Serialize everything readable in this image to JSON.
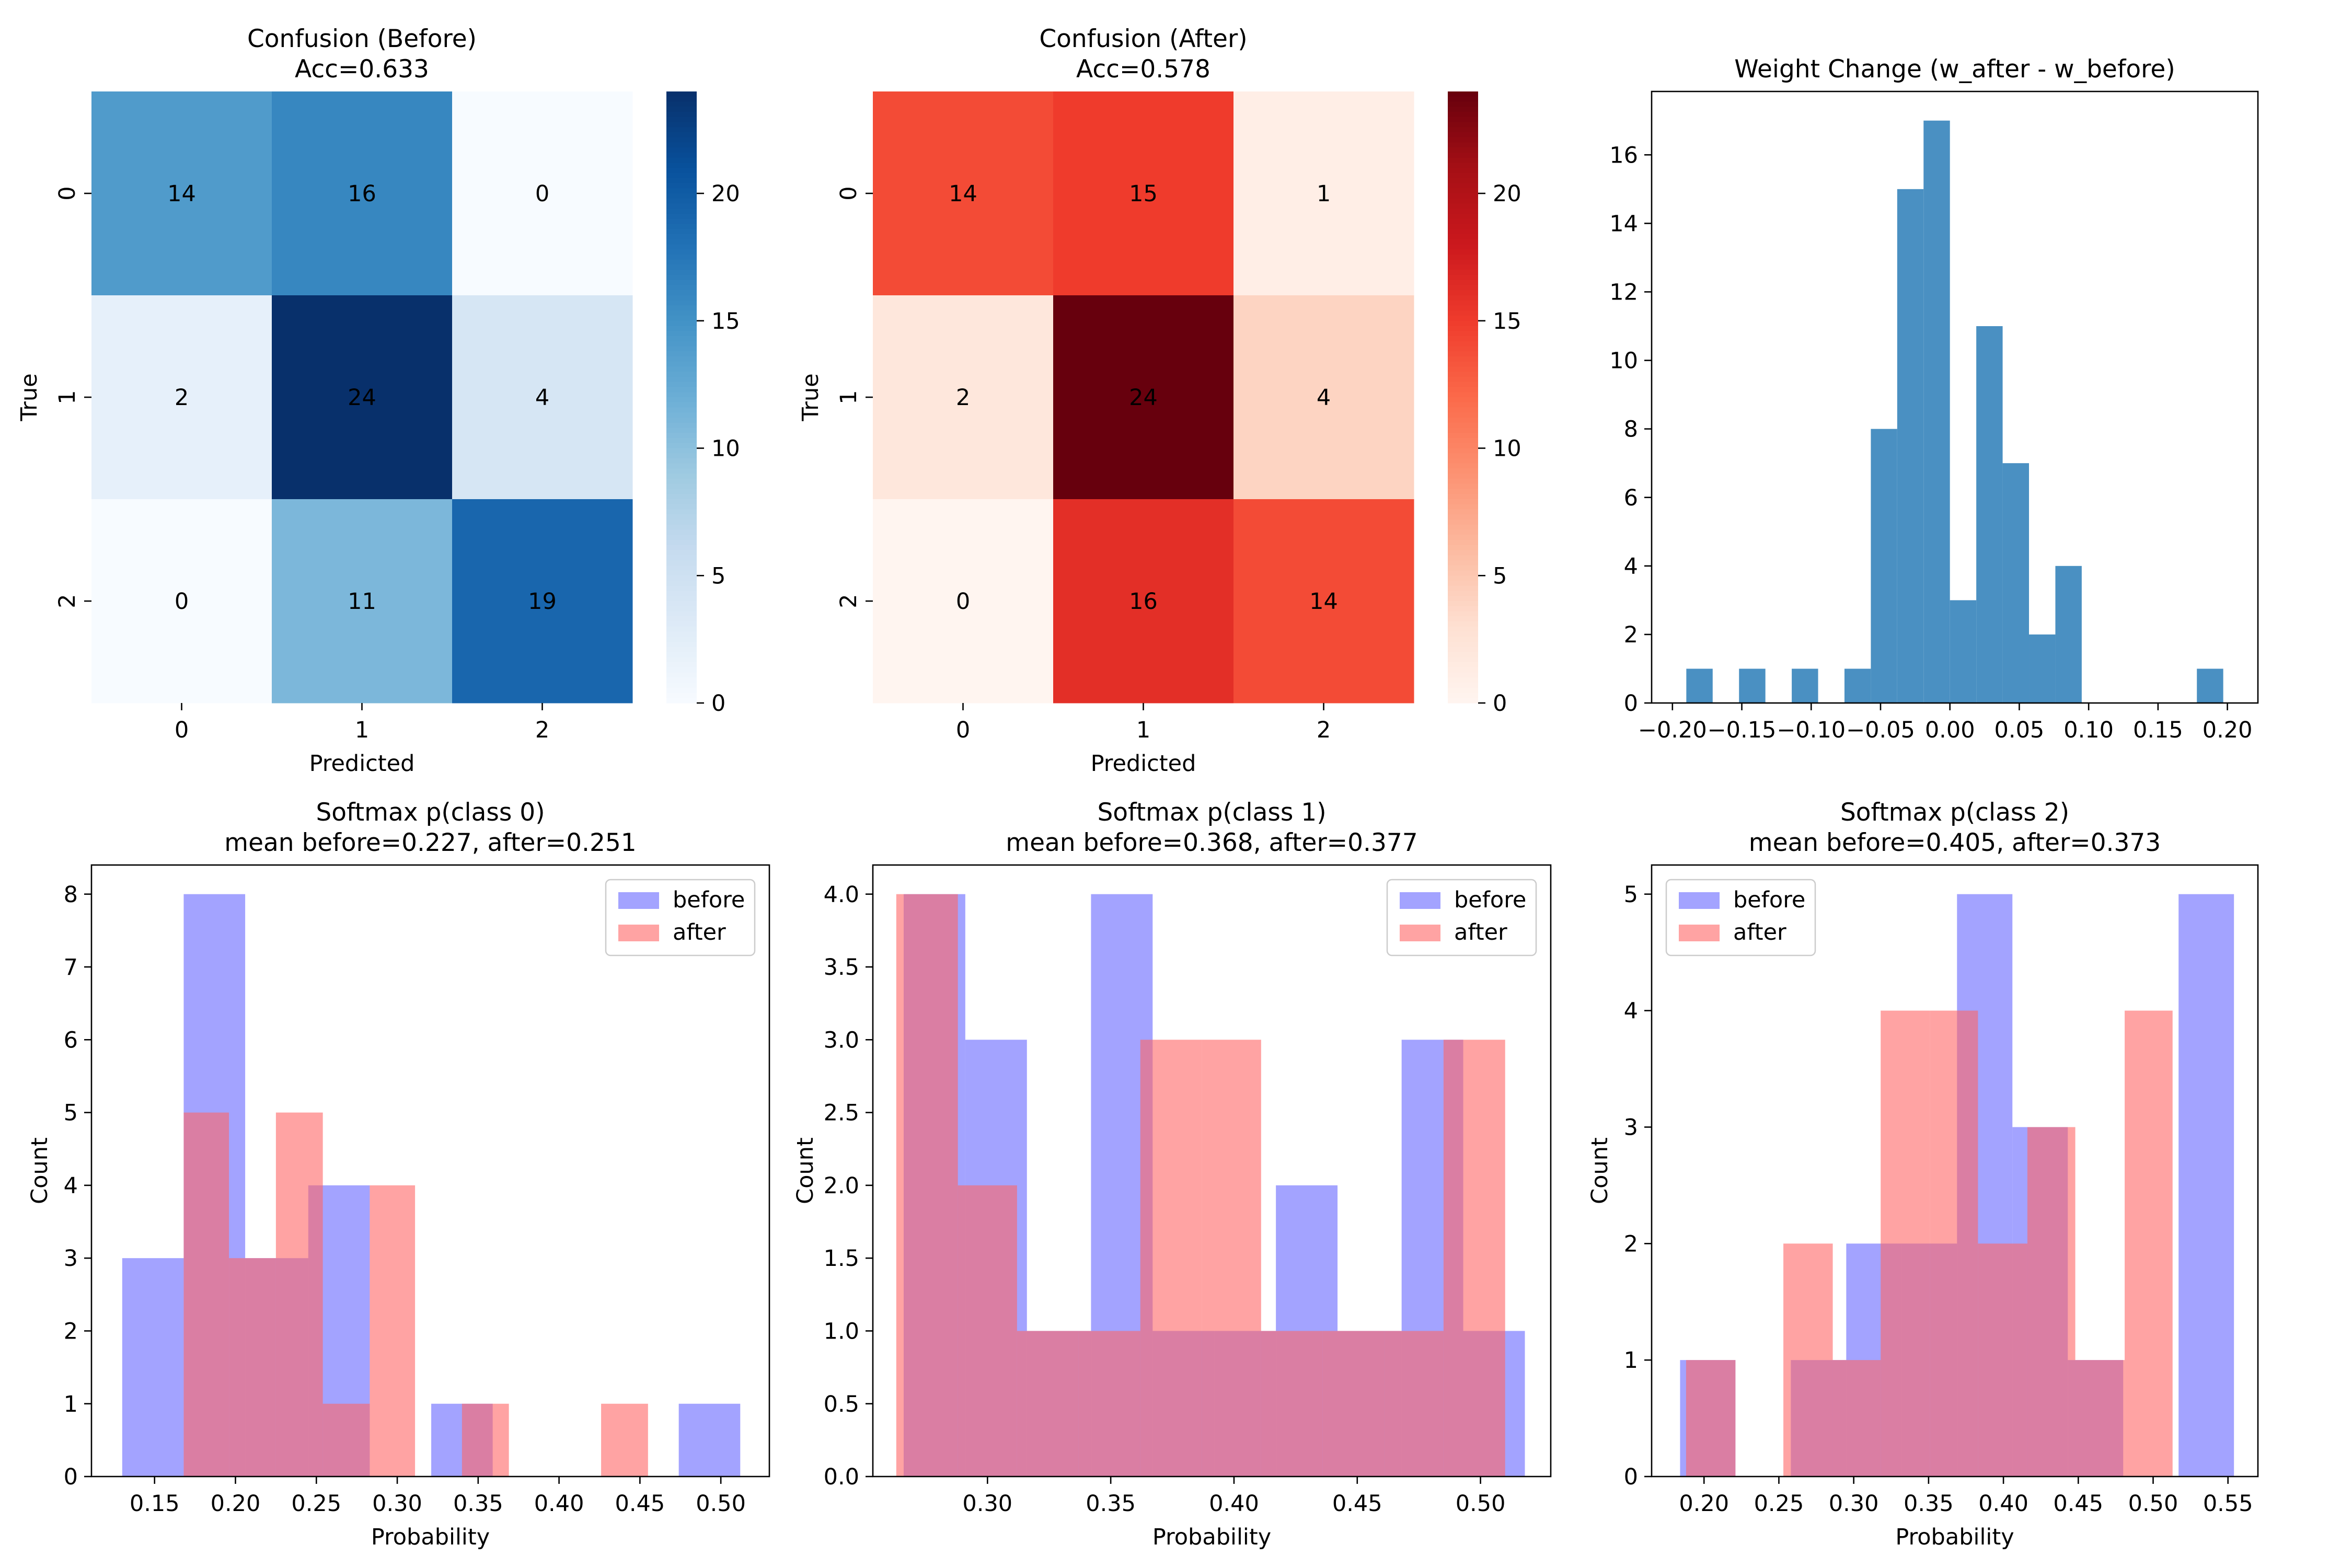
{
  "chart_data": [
    {
      "type": "heatmap",
      "title": "Confusion (Before)",
      "subtitle": "Acc=0.633",
      "xlabel": "Predicted",
      "ylabel": "True",
      "xticks": [
        "0",
        "1",
        "2"
      ],
      "yticks": [
        "0",
        "1",
        "2"
      ],
      "matrix": [
        [
          14,
          16,
          0
        ],
        [
          2,
          24,
          4
        ],
        [
          0,
          11,
          19
        ]
      ],
      "vmin": 0,
      "vmax": 24,
      "colormap": "Blues",
      "colorbar_ticks": [
        0,
        5,
        10,
        15,
        20
      ]
    },
    {
      "type": "heatmap",
      "title": "Confusion (After)",
      "subtitle": "Acc=0.578",
      "xlabel": "Predicted",
      "ylabel": "True",
      "xticks": [
        "0",
        "1",
        "2"
      ],
      "yticks": [
        "0",
        "1",
        "2"
      ],
      "matrix": [
        [
          14,
          15,
          1
        ],
        [
          2,
          24,
          4
        ],
        [
          0,
          16,
          14
        ]
      ],
      "vmin": 0,
      "vmax": 24,
      "colormap": "Reds",
      "colorbar_ticks": [
        0,
        5,
        10,
        15,
        20
      ]
    },
    {
      "type": "bar",
      "title": "Weight Change (w_after - w_before)",
      "xlabel": "",
      "ylabel": "",
      "color": "#4a90c2",
      "xlim": [
        -0.215,
        0.222
      ],
      "ylim": [
        0,
        17.85
      ],
      "xticks": [
        -0.2,
        -0.15,
        -0.1,
        -0.05,
        0.0,
        0.05,
        0.1,
        0.15,
        0.2
      ],
      "yticks": [
        0,
        2,
        4,
        6,
        8,
        10,
        12,
        14,
        16
      ],
      "bins": [
        {
          "x0": -0.19,
          "x1": -0.171,
          "count": 1
        },
        {
          "x0": -0.152,
          "x1": -0.133,
          "count": 1
        },
        {
          "x0": -0.114,
          "x1": -0.095,
          "count": 1
        },
        {
          "x0": -0.076,
          "x1": -0.057,
          "count": 1
        },
        {
          "x0": -0.057,
          "x1": -0.038,
          "count": 8
        },
        {
          "x0": -0.038,
          "x1": -0.019,
          "count": 15
        },
        {
          "x0": -0.019,
          "x1": 0.0,
          "count": 17
        },
        {
          "x0": 0.0,
          "x1": 0.019,
          "count": 3
        },
        {
          "x0": 0.019,
          "x1": 0.038,
          "count": 11
        },
        {
          "x0": 0.038,
          "x1": 0.057,
          "count": 7
        },
        {
          "x0": 0.057,
          "x1": 0.076,
          "count": 2
        },
        {
          "x0": 0.076,
          "x1": 0.095,
          "count": 4
        },
        {
          "x0": 0.178,
          "x1": 0.197,
          "count": 1
        }
      ]
    },
    {
      "type": "bar",
      "title": "Softmax p(class 0)",
      "subtitle": "mean before=0.227, after=0.251",
      "xlabel": "Probability",
      "ylabel": "Count",
      "xlim": [
        0.111,
        0.53
      ],
      "ylim": [
        0,
        8.4
      ],
      "xticks": [
        0.15,
        0.2,
        0.25,
        0.3,
        0.35,
        0.4,
        0.45,
        0.5
      ],
      "yticks": [
        0,
        1,
        2,
        3,
        4,
        5,
        6,
        7,
        8
      ],
      "legend": {
        "position": "top-right",
        "entries": [
          "before",
          "after"
        ]
      },
      "series": [
        {
          "name": "before",
          "color": "#6666ff",
          "bins": [
            {
              "x0": 0.13,
              "x1": 0.168,
              "count": 3
            },
            {
              "x0": 0.168,
              "x1": 0.206,
              "count": 8
            },
            {
              "x0": 0.206,
              "x1": 0.245,
              "count": 3
            },
            {
              "x0": 0.245,
              "x1": 0.283,
              "count": 4
            },
            {
              "x0": 0.283,
              "x1": 0.321,
              "count": 0
            },
            {
              "x0": 0.321,
              "x1": 0.359,
              "count": 1
            },
            {
              "x0": 0.359,
              "x1": 0.397,
              "count": 0
            },
            {
              "x0": 0.397,
              "x1": 0.436,
              "count": 0
            },
            {
              "x0": 0.436,
              "x1": 0.474,
              "count": 0
            },
            {
              "x0": 0.474,
              "x1": 0.512,
              "count": 1
            }
          ]
        },
        {
          "name": "after",
          "color": "#ff6666",
          "bins": [
            {
              "x0": 0.168,
              "x1": 0.196,
              "count": 5
            },
            {
              "x0": 0.196,
              "x1": 0.225,
              "count": 3
            },
            {
              "x0": 0.225,
              "x1": 0.254,
              "count": 5
            },
            {
              "x0": 0.254,
              "x1": 0.283,
              "count": 1
            },
            {
              "x0": 0.283,
              "x1": 0.311,
              "count": 4
            },
            {
              "x0": 0.311,
              "x1": 0.34,
              "count": 0
            },
            {
              "x0": 0.34,
              "x1": 0.369,
              "count": 1
            },
            {
              "x0": 0.369,
              "x1": 0.397,
              "count": 0
            },
            {
              "x0": 0.397,
              "x1": 0.426,
              "count": 0
            },
            {
              "x0": 0.426,
              "x1": 0.455,
              "count": 1
            }
          ]
        }
      ]
    },
    {
      "type": "bar",
      "title": "Softmax p(class 1)",
      "subtitle": "mean before=0.368, after=0.377",
      "xlabel": "Probability",
      "ylabel": "Count",
      "xlim": [
        0.2535,
        0.5285
      ],
      "ylim": [
        0,
        4.2
      ],
      "xticks": [
        0.3,
        0.35,
        0.4,
        0.45,
        0.5
      ],
      "yticks": [
        0.0,
        0.5,
        1.0,
        1.5,
        2.0,
        2.5,
        3.0,
        3.5,
        4.0
      ],
      "legend": {
        "position": "top-right",
        "entries": [
          "before",
          "after"
        ]
      },
      "series": [
        {
          "name": "before",
          "color": "#6666ff",
          "bins": [
            {
              "x0": 0.266,
              "x1": 0.291,
              "count": 4
            },
            {
              "x0": 0.291,
              "x1": 0.316,
              "count": 3
            },
            {
              "x0": 0.316,
              "x1": 0.342,
              "count": 1
            },
            {
              "x0": 0.342,
              "x1": 0.367,
              "count": 4
            },
            {
              "x0": 0.367,
              "x1": 0.392,
              "count": 1
            },
            {
              "x0": 0.392,
              "x1": 0.417,
              "count": 1
            },
            {
              "x0": 0.417,
              "x1": 0.442,
              "count": 2
            },
            {
              "x0": 0.442,
              "x1": 0.468,
              "count": 1
            },
            {
              "x0": 0.468,
              "x1": 0.493,
              "count": 3
            },
            {
              "x0": 0.493,
              "x1": 0.518,
              "count": 1
            }
          ]
        },
        {
          "name": "after",
          "color": "#ff6666",
          "bins": [
            {
              "x0": 0.263,
              "x1": 0.288,
              "count": 4
            },
            {
              "x0": 0.288,
              "x1": 0.312,
              "count": 2
            },
            {
              "x0": 0.312,
              "x1": 0.337,
              "count": 1
            },
            {
              "x0": 0.337,
              "x1": 0.362,
              "count": 1
            },
            {
              "x0": 0.362,
              "x1": 0.387,
              "count": 3
            },
            {
              "x0": 0.387,
              "x1": 0.411,
              "count": 3
            },
            {
              "x0": 0.411,
              "x1": 0.436,
              "count": 1
            },
            {
              "x0": 0.436,
              "x1": 0.461,
              "count": 1
            },
            {
              "x0": 0.461,
              "x1": 0.485,
              "count": 1
            },
            {
              "x0": 0.485,
              "x1": 0.51,
              "count": 3
            }
          ]
        }
      ]
    },
    {
      "type": "bar",
      "title": "Softmax p(class 2)",
      "subtitle": "mean before=0.405, after=0.373",
      "xlabel": "Probability",
      "ylabel": "Count",
      "xlim": [
        0.165,
        0.57
      ],
      "ylim": [
        0,
        5.25
      ],
      "xticks": [
        0.2,
        0.25,
        0.3,
        0.35,
        0.4,
        0.45,
        0.5,
        0.55
      ],
      "yticks": [
        0,
        1,
        2,
        3,
        4,
        5
      ],
      "legend": {
        "position": "top-left",
        "entries": [
          "before",
          "after"
        ]
      },
      "series": [
        {
          "name": "before",
          "color": "#6666ff",
          "bins": [
            {
              "x0": 0.184,
              "x1": 0.221,
              "count": 1
            },
            {
              "x0": 0.221,
              "x1": 0.258,
              "count": 0
            },
            {
              "x0": 0.258,
              "x1": 0.295,
              "count": 1
            },
            {
              "x0": 0.295,
              "x1": 0.332,
              "count": 2
            },
            {
              "x0": 0.332,
              "x1": 0.369,
              "count": 2
            },
            {
              "x0": 0.369,
              "x1": 0.406,
              "count": 5
            },
            {
              "x0": 0.406,
              "x1": 0.443,
              "count": 3
            },
            {
              "x0": 0.443,
              "x1": 0.48,
              "count": 1
            },
            {
              "x0": 0.48,
              "x1": 0.517,
              "count": 0
            },
            {
              "x0": 0.517,
              "x1": 0.554,
              "count": 5
            }
          ]
        },
        {
          "name": "after",
          "color": "#ff6666",
          "bins": [
            {
              "x0": 0.188,
              "x1": 0.221,
              "count": 1
            },
            {
              "x0": 0.221,
              "x1": 0.253,
              "count": 0
            },
            {
              "x0": 0.253,
              "x1": 0.286,
              "count": 2
            },
            {
              "x0": 0.286,
              "x1": 0.318,
              "count": 1
            },
            {
              "x0": 0.318,
              "x1": 0.351,
              "count": 4
            },
            {
              "x0": 0.351,
              "x1": 0.383,
              "count": 4
            },
            {
              "x0": 0.383,
              "x1": 0.416,
              "count": 2
            },
            {
              "x0": 0.416,
              "x1": 0.448,
              "count": 3
            },
            {
              "x0": 0.448,
              "x1": 0.481,
              "count": 1
            },
            {
              "x0": 0.481,
              "x1": 0.513,
              "count": 4
            }
          ]
        }
      ]
    }
  ]
}
